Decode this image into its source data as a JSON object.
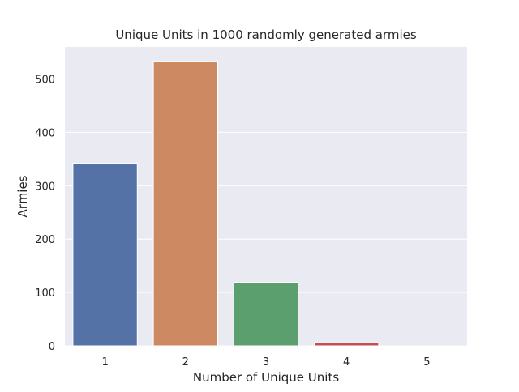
{
  "chart_data": {
    "type": "bar",
    "title": "Unique Units in 1000 randomly generated armies",
    "xlabel": "Number of Unique Units",
    "ylabel": "Armies",
    "categories": [
      "1",
      "2",
      "3",
      "4",
      "5"
    ],
    "values": [
      342,
      533,
      119,
      6,
      0
    ],
    "ylim": [
      0,
      560
    ],
    "yticks": [
      0,
      100,
      200,
      300,
      400,
      500
    ],
    "colors": [
      "#5572a6",
      "#cc8962",
      "#5c9f6e",
      "#c44e52",
      "#8172b3"
    ],
    "background": "#eaeaf2",
    "grid": true,
    "legend": "none"
  }
}
